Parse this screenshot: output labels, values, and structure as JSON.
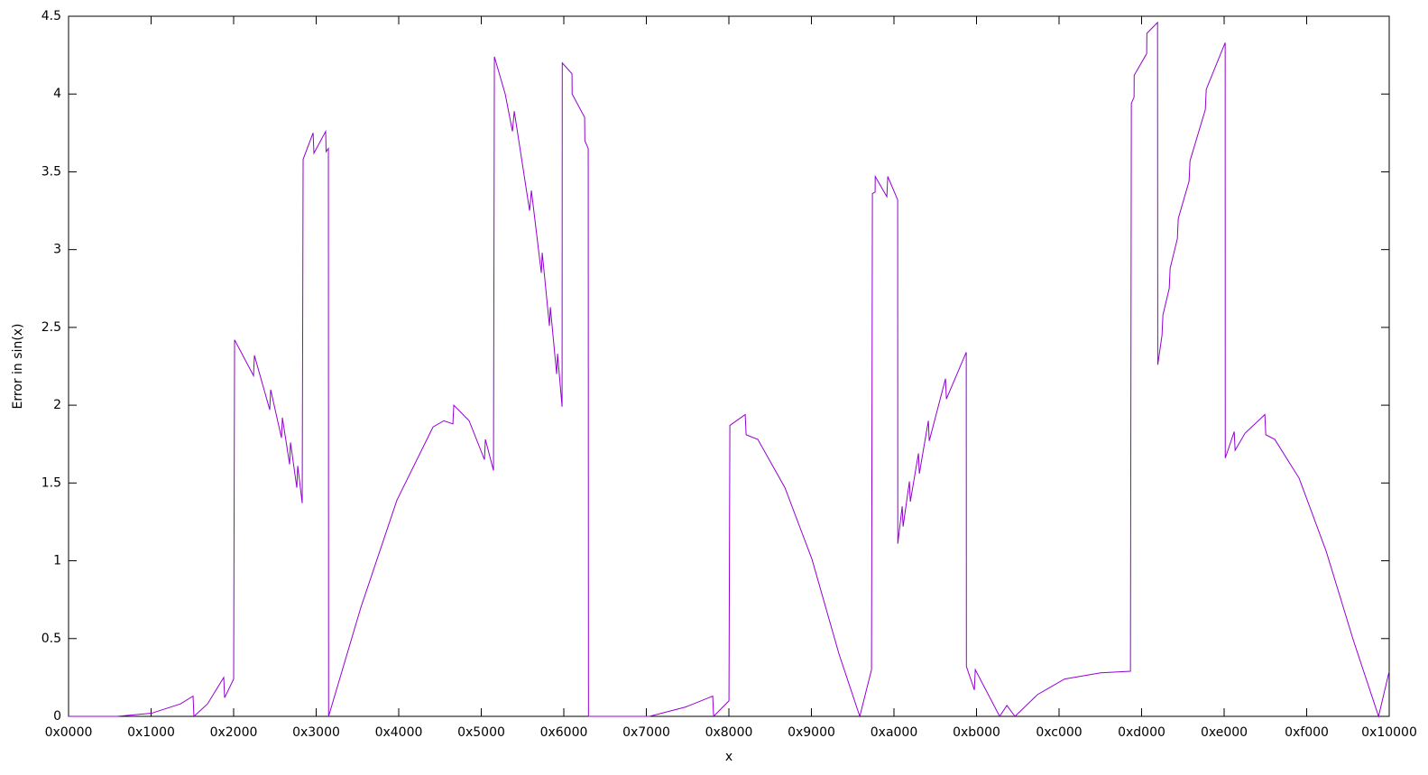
{
  "chart_data": {
    "type": "line",
    "xlabel": "x",
    "ylabel": "Error in sin(x)",
    "color": "#9400d3",
    "xlim": [
      0,
      65536
    ],
    "ylim": [
      0,
      4.5
    ],
    "xticks": [
      {
        "value": 0,
        "label": "0x0000"
      },
      {
        "value": 4096,
        "label": "0x1000"
      },
      {
        "value": 8192,
        "label": "0x2000"
      },
      {
        "value": 12288,
        "label": "0x3000"
      },
      {
        "value": 16384,
        "label": "0x4000"
      },
      {
        "value": 20480,
        "label": "0x5000"
      },
      {
        "value": 24576,
        "label": "0x6000"
      },
      {
        "value": 28672,
        "label": "0x7000"
      },
      {
        "value": 32768,
        "label": "0x8000"
      },
      {
        "value": 36864,
        "label": "0x9000"
      },
      {
        "value": 40960,
        "label": "0xa000"
      },
      {
        "value": 45056,
        "label": "0xb000"
      },
      {
        "value": 49152,
        "label": "0xc000"
      },
      {
        "value": 53248,
        "label": "0xd000"
      },
      {
        "value": 57344,
        "label": "0xe000"
      },
      {
        "value": 61440,
        "label": "0xf000"
      },
      {
        "value": 65536,
        "label": "0x10000"
      }
    ],
    "yticks": [
      0,
      0.5,
      1,
      1.5,
      2,
      2.5,
      3,
      3.5,
      4,
      4.5
    ],
    "x": [
      0,
      2418,
      4119,
      5551,
      6178,
      6223,
      6895,
      7700,
      7745,
      8193,
      8238,
      9178,
      9223,
      9984,
      10029,
      10566,
      10611,
      10969,
      11014,
      11327,
      11372,
      11595,
      11640,
      12133,
      12177,
      12759,
      12780,
      12894,
      12904,
      14505,
      16296,
      18087,
      18624,
      19072,
      19117,
      19878,
      20639,
      20684,
      21087,
      21132,
      21669,
      22027,
      22117,
      22878,
      22967,
      23460,
      23505,
      23863,
      23908,
      24221,
      24266,
      24490,
      24500,
      24982,
      24990,
      25609,
      25620,
      25788,
      25800,
      28832,
      30623,
      31966,
      32011,
      32772,
      32817,
      33578,
      33623,
      34205,
      35548,
      36891,
      38234,
      39264,
      39846,
      39890,
      40025,
      40030,
      40607,
      40652,
      41144,
      41150,
      41368,
      41413,
      41726,
      41771,
      42174,
      42219,
      42667,
      42711,
      43517,
      43562,
      44547,
      44555,
      44950,
      44995,
      46204,
      46562,
      46965,
      48084,
      49427,
      51218,
      52695,
      52740,
      52874,
      52880,
      53502,
      53510,
      54040,
      54050,
      54262,
      54307,
      54620,
      54665,
      55023,
      55068,
      55605,
      55650,
      56411,
      56456,
      57396,
      57400,
      57844,
      57889,
      58381,
      59366,
      59411,
      59859,
      61068,
      62411,
      63754,
      65008,
      65536
    ],
    "values": [
      0,
      0,
      0.02,
      0.08,
      0.13,
      0,
      0.08,
      0.25,
      0.12,
      0.24,
      2.42,
      2.19,
      2.32,
      1.97,
      2.1,
      1.79,
      1.92,
      1.62,
      1.76,
      1.47,
      1.61,
      1.37,
      3.58,
      3.75,
      3.62,
      3.76,
      3.63,
      3.65,
      0,
      0.7,
      1.39,
      1.86,
      1.9,
      1.88,
      2.0,
      1.9,
      1.65,
      1.78,
      1.58,
      4.24,
      4.0,
      3.76,
      3.89,
      3.25,
      3.38,
      2.85,
      2.98,
      2.51,
      2.63,
      2.2,
      2.33,
      1.99,
      4.2,
      4.13,
      4.0,
      3.85,
      3.7,
      3.65,
      0,
      0,
      0.06,
      0.13,
      0,
      0.1,
      1.87,
      1.94,
      1.81,
      1.78,
      1.47,
      1.01,
      0.4,
      0,
      0.3,
      3.36,
      3.37,
      3.47,
      3.34,
      3.47,
      3.32,
      1.11,
      1.35,
      1.22,
      1.51,
      1.38,
      1.69,
      1.56,
      1.9,
      1.77,
      2.17,
      2.04,
      2.34,
      0.32,
      0.17,
      0.3,
      0,
      0.07,
      0,
      0.14,
      0.24,
      0.28,
      0.29,
      3.94,
      3.98,
      4.12,
      4.26,
      4.39,
      4.46,
      2.26,
      2.45,
      2.58,
      2.75,
      2.88,
      3.07,
      3.2,
      3.44,
      3.57,
      3.9,
      4.03,
      4.33,
      1.66,
      1.83,
      1.71,
      1.82,
      1.94,
      1.81,
      1.78,
      1.53,
      1.06,
      0.49,
      0,
      0.29
    ]
  }
}
